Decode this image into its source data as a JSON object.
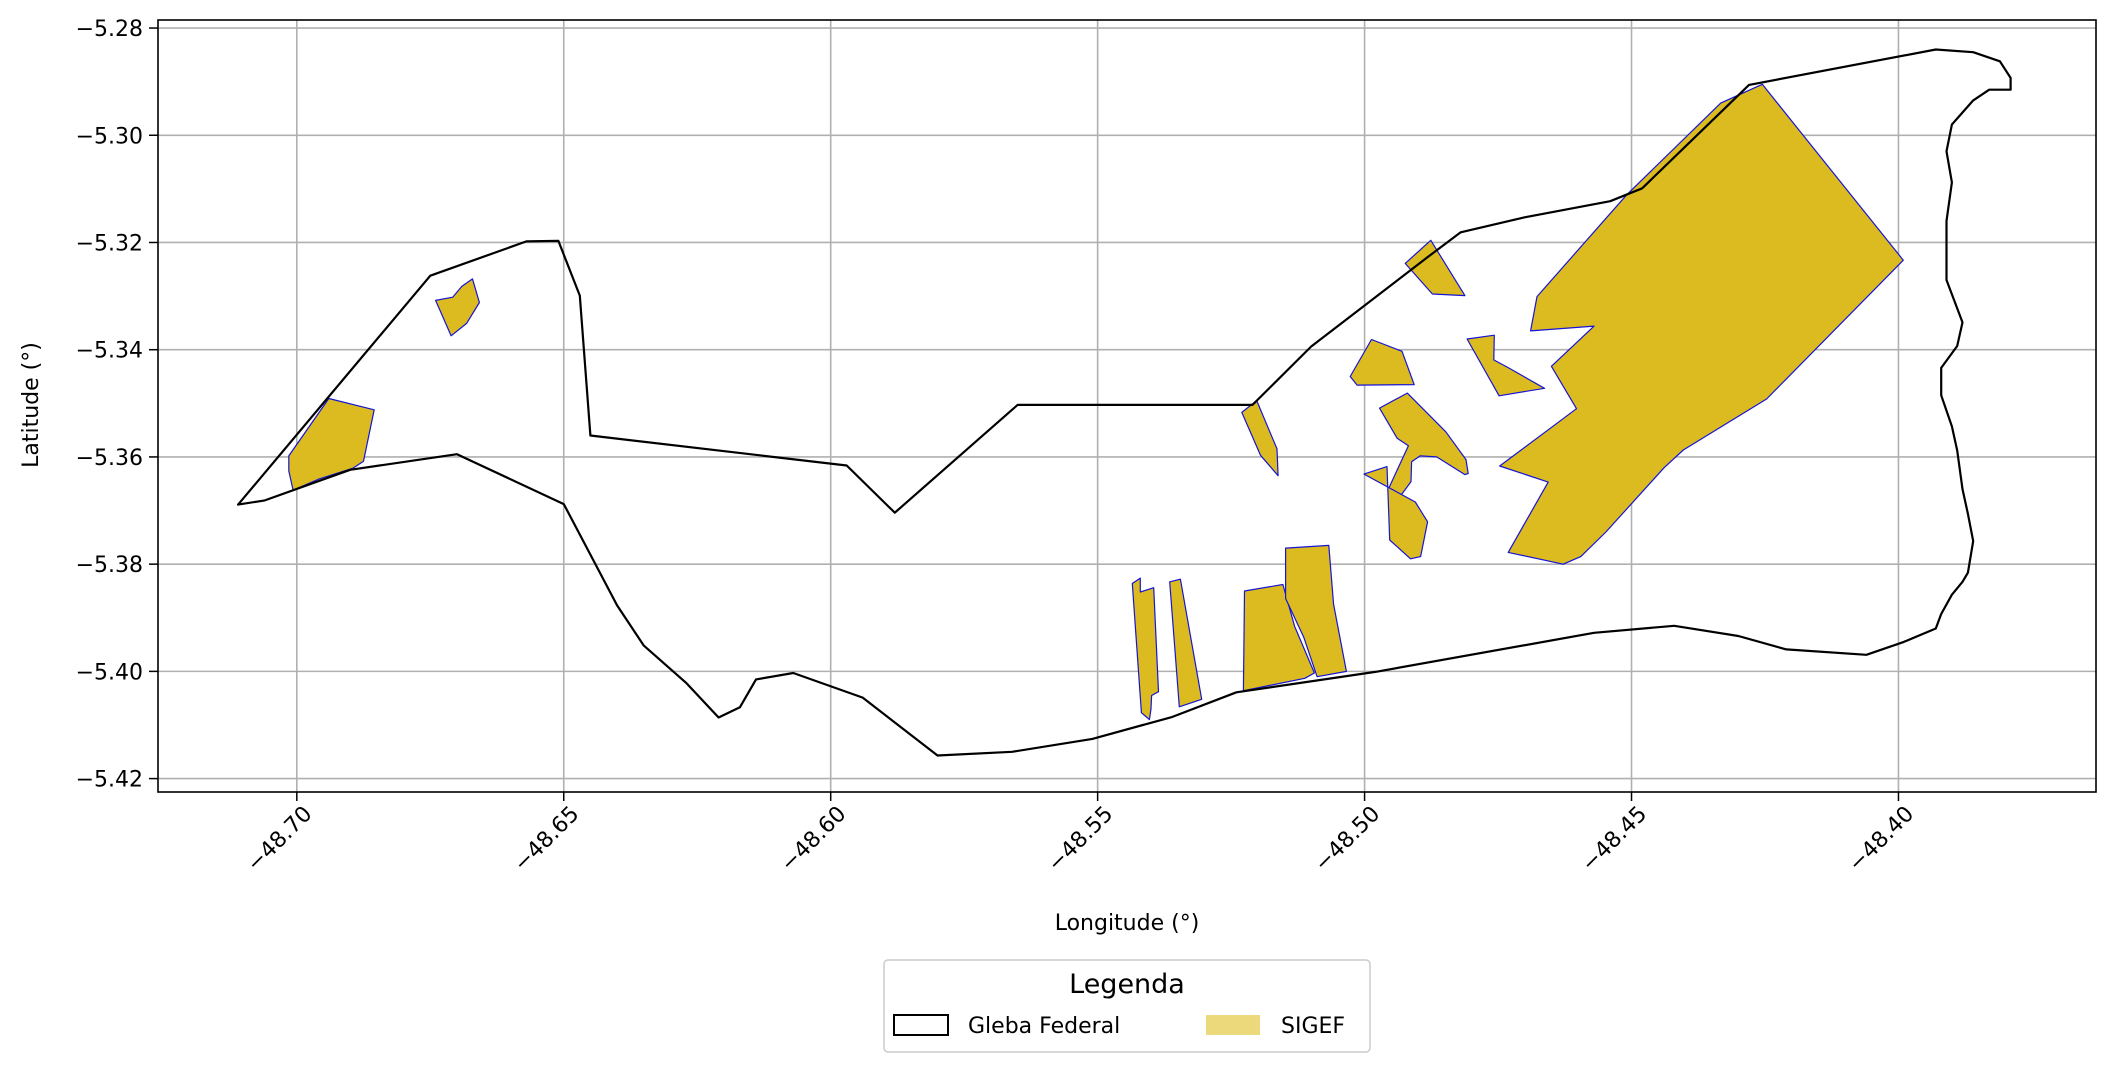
{
  "chart_data": {
    "type": "map",
    "xlabel": "Longitude (°)",
    "ylabel": "Latitude (°)",
    "xlim": [
      -48.726,
      -48.363
    ],
    "ylim": [
      -5.4225,
      -5.2785
    ],
    "grid": true,
    "x_ticks": [
      {
        "value": -48.7,
        "label": "−48.70"
      },
      {
        "value": -48.65,
        "label": "−48.65"
      },
      {
        "value": -48.6,
        "label": "−48.60"
      },
      {
        "value": -48.55,
        "label": "−48.55"
      },
      {
        "value": -48.5,
        "label": "−48.50"
      },
      {
        "value": -48.45,
        "label": "−48.45"
      },
      {
        "value": -48.4,
        "label": "−48.40"
      }
    ],
    "y_ticks": [
      {
        "value": -5.28,
        "label": "−5.28"
      },
      {
        "value": -5.3,
        "label": "−5.30"
      },
      {
        "value": -5.32,
        "label": "−5.32"
      },
      {
        "value": -5.34,
        "label": "−5.34"
      },
      {
        "value": -5.36,
        "label": "−5.36"
      },
      {
        "value": -5.38,
        "label": "−5.38"
      },
      {
        "value": -5.4,
        "label": "−5.40"
      },
      {
        "value": -5.42,
        "label": "−5.42"
      }
    ],
    "legend": {
      "title": "Legenda",
      "placement": "bottom-center",
      "entries": [
        {
          "label": "Gleba Federal",
          "style": "outline",
          "edge": "#000000",
          "fill": "none"
        },
        {
          "label": "SIGEF",
          "style": "fill",
          "fill": "#ecd97b"
        }
      ]
    },
    "colors": {
      "gleba_edge": "#000000",
      "sigef_fill": "#dcbb20",
      "sigef_edge": "#1515d6",
      "grid": "#b0b0b0"
    },
    "gleba_federal": [
      [
        -48.711,
        -5.3689
      ],
      [
        -48.706,
        -5.3681
      ],
      [
        -48.69,
        -5.3624
      ],
      [
        -48.67,
        -5.3595
      ],
      [
        -48.65,
        -5.3688
      ],
      [
        -48.64,
        -5.3877
      ],
      [
        -48.635,
        -5.3952
      ],
      [
        -48.627,
        -5.4022
      ],
      [
        -48.621,
        -5.4086
      ],
      [
        -48.617,
        -5.4067
      ],
      [
        -48.614,
        -5.4015
      ],
      [
        -48.607,
        -5.4003
      ],
      [
        -48.594,
        -5.4049
      ],
      [
        -48.58,
        -5.4157
      ],
      [
        -48.566,
        -5.415
      ],
      [
        -48.551,
        -5.4126
      ],
      [
        -48.536,
        -5.4085
      ],
      [
        -48.524,
        -5.4039
      ],
      [
        -48.498,
        -5.4001
      ],
      [
        -48.457,
        -5.3928
      ],
      [
        -48.442,
        -5.3915
      ],
      [
        -48.43,
        -5.3934
      ],
      [
        -48.421,
        -5.3959
      ],
      [
        -48.406,
        -5.3969
      ],
      [
        -48.399,
        -5.3945
      ],
      [
        -48.393,
        -5.392
      ],
      [
        -48.392,
        -5.3893
      ],
      [
        -48.39,
        -5.3857
      ],
      [
        -48.388,
        -5.3833
      ],
      [
        -48.387,
        -5.3816
      ],
      [
        -48.386,
        -5.3757
      ],
      [
        -48.387,
        -5.3706
      ],
      [
        -48.388,
        -5.366
      ],
      [
        -48.389,
        -5.3588
      ],
      [
        -48.39,
        -5.3543
      ],
      [
        -48.392,
        -5.3485
      ],
      [
        -48.392,
        -5.3434
      ],
      [
        -48.389,
        -5.3393
      ],
      [
        -48.388,
        -5.3349
      ],
      [
        -48.391,
        -5.327
      ],
      [
        -48.391,
        -5.3225
      ],
      [
        -48.391,
        -5.316
      ],
      [
        -48.39,
        -5.3088
      ],
      [
        -48.391,
        -5.303
      ],
      [
        -48.39,
        -5.298
      ],
      [
        -48.386,
        -5.2935
      ],
      [
        -48.383,
        -5.2915
      ],
      [
        -48.379,
        -5.2915
      ],
      [
        -48.379,
        -5.2893
      ],
      [
        -48.381,
        -5.2862
      ],
      [
        -48.386,
        -5.2845
      ],
      [
        -48.393,
        -5.284
      ],
      [
        -48.428,
        -5.2906
      ],
      [
        -48.448,
        -5.3099
      ],
      [
        -48.454,
        -5.3123
      ],
      [
        -48.47,
        -5.3153
      ],
      [
        -48.482,
        -5.3181
      ],
      [
        -48.488,
        -5.3226
      ],
      [
        -48.51,
        -5.3394
      ],
      [
        -48.521,
        -5.3503
      ],
      [
        -48.565,
        -5.3503
      ],
      [
        -48.588,
        -5.3704
      ],
      [
        -48.597,
        -5.3616
      ],
      [
        -48.645,
        -5.356
      ],
      [
        -48.647,
        -5.3299
      ],
      [
        -48.651,
        -5.3197
      ],
      [
        -48.657,
        -5.3198
      ],
      [
        -48.675,
        -5.3262
      ],
      [
        -48.711,
        -5.3689
      ]
    ],
    "sigef_parcels": [
      [
        [
          -48.7015,
          -5.3598
        ],
        [
          -48.694,
          -5.3491
        ],
        [
          -48.6855,
          -5.3512
        ],
        [
          -48.6875,
          -5.3608
        ],
        [
          -48.6895,
          -5.3621
        ],
        [
          -48.6958,
          -5.3641
        ],
        [
          -48.7007,
          -5.3662
        ],
        [
          -48.7015,
          -5.3626
        ]
      ],
      [
        [
          -48.674,
          -5.3308
        ],
        [
          -48.6711,
          -5.3374
        ],
        [
          -48.6682,
          -5.3351
        ],
        [
          -48.6658,
          -5.3312
        ],
        [
          -48.6671,
          -5.3268
        ],
        [
          -48.6691,
          -5.3282
        ],
        [
          -48.6708,
          -5.3302
        ]
      ],
      [
        [
          -48.5435,
          -5.3836
        ],
        [
          -48.542,
          -5.3826
        ],
        [
          -48.542,
          -5.3852
        ],
        [
          -48.5395,
          -5.3844
        ],
        [
          -48.5386,
          -5.4038
        ],
        [
          -48.5399,
          -5.4045
        ],
        [
          -48.54,
          -5.407
        ],
        [
          -48.5403,
          -5.409
        ],
        [
          -48.5418,
          -5.4077
        ]
      ],
      [
        [
          -48.5365,
          -5.3833
        ],
        [
          -48.5345,
          -5.3828
        ],
        [
          -48.5305,
          -5.4052
        ],
        [
          -48.5347,
          -5.4066
        ]
      ],
      [
        [
          -48.5227,
          -5.4036
        ],
        [
          -48.5225,
          -5.385
        ],
        [
          -48.5153,
          -5.3838
        ],
        [
          -48.5131,
          -5.3916
        ],
        [
          -48.5094,
          -5.4003
        ],
        [
          -48.5112,
          -5.4013
        ]
      ],
      [
        [
          -48.5148,
          -5.377
        ],
        [
          -48.5067,
          -5.3765
        ],
        [
          -48.5058,
          -5.3875
        ],
        [
          -48.5034,
          -5.4
        ],
        [
          -48.5089,
          -5.401
        ],
        [
          -48.5114,
          -5.3936
        ],
        [
          -48.5148,
          -5.3864
        ]
      ],
      [
        [
          -48.523,
          -5.3517
        ],
        [
          -48.5202,
          -5.3495
        ],
        [
          -48.5164,
          -5.3585
        ],
        [
          -48.5162,
          -5.3635
        ],
        [
          -48.5195,
          -5.3597
        ]
      ],
      [
        [
          -48.4987,
          -5.3381
        ],
        [
          -48.493,
          -5.3403
        ],
        [
          -48.4907,
          -5.3465
        ],
        [
          -48.5014,
          -5.3466
        ],
        [
          -48.5027,
          -5.345
        ]
      ],
      [
        [
          -48.4808,
          -5.338
        ],
        [
          -48.4757,
          -5.3373
        ],
        [
          -48.4758,
          -5.3419
        ],
        [
          -48.4732,
          -5.3433
        ],
        [
          -48.4663,
          -5.3472
        ],
        [
          -48.4748,
          -5.3486
        ]
      ],
      [
        [
          -48.4924,
          -5.3239
        ],
        [
          -48.4873,
          -5.3296
        ],
        [
          -48.4812,
          -5.3299
        ],
        [
          -48.4876,
          -5.3196
        ]
      ],
      [
        [
          -48.4972,
          -5.3509
        ],
        [
          -48.4939,
          -5.3565
        ],
        [
          -48.4918,
          -5.3579
        ],
        [
          -48.4955,
          -5.3659
        ],
        [
          -48.4941,
          -5.3684
        ],
        [
          -48.4913,
          -5.3646
        ],
        [
          -48.4912,
          -5.3609
        ],
        [
          -48.4896,
          -5.3598
        ],
        [
          -48.4865,
          -5.36
        ],
        [
          -48.4812,
          -5.3633
        ],
        [
          -48.4806,
          -5.3631
        ],
        [
          -48.481,
          -5.3605
        ],
        [
          -48.4848,
          -5.3553
        ],
        [
          -48.492,
          -5.3481
        ]
      ],
      [
        [
          -48.5001,
          -5.3632
        ],
        [
          -48.4958,
          -5.3618
        ],
        [
          -48.4953,
          -5.3755
        ],
        [
          -48.4914,
          -5.379
        ],
        [
          -48.4895,
          -5.3786
        ],
        [
          -48.4882,
          -5.3721
        ],
        [
          -48.4905,
          -5.3684
        ]
      ],
      [
        [
          -48.4677,
          -5.3301
        ],
        [
          -48.4509,
          -5.3111
        ],
        [
          -48.4333,
          -5.294
        ],
        [
          -48.4255,
          -5.2905
        ],
        [
          -48.3991,
          -5.3233
        ],
        [
          -48.4247,
          -5.3492
        ],
        [
          -48.4403,
          -5.3587
        ],
        [
          -48.4439,
          -5.362
        ],
        [
          -48.4548,
          -5.374
        ],
        [
          -48.4595,
          -5.3786
        ],
        [
          -48.4628,
          -5.38
        ],
        [
          -48.4731,
          -5.3778
        ],
        [
          -48.4656,
          -5.3647
        ],
        [
          -48.4747,
          -5.3617
        ],
        [
          -48.4603,
          -5.351
        ],
        [
          -48.465,
          -5.3431
        ],
        [
          -48.457,
          -5.3356
        ],
        [
          -48.4689,
          -5.3365
        ]
      ]
    ]
  }
}
